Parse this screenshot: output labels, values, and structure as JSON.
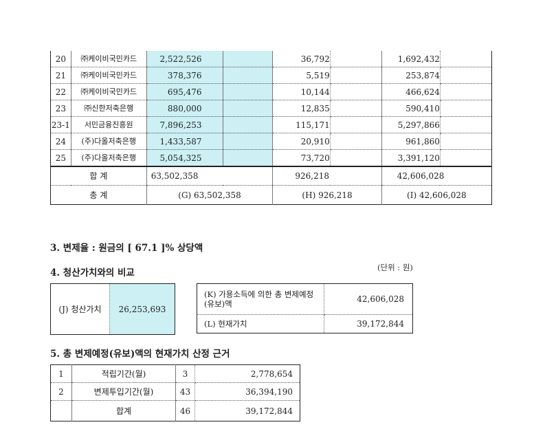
{
  "rows": [
    {
      "no": "20",
      "name": "㈜케이비국민카드",
      "principal": "2,522,526",
      "monthly": "36,792",
      "total": "1,692,432"
    },
    {
      "no": "21",
      "name": "㈜케이비국민카드",
      "principal": "378,376",
      "monthly": "5,519",
      "total": "253,874"
    },
    {
      "no": "22",
      "name": "㈜케이비국민카드",
      "principal": "695,476",
      "monthly": "10,144",
      "total": "466,624"
    },
    {
      "no": "23",
      "name": "㈜신한저축은행",
      "principal": "880,000",
      "monthly": "12,835",
      "total": "590,410"
    },
    {
      "no": "23-1",
      "name": "서민금융진흥원",
      "principal": "7,896,253",
      "monthly": "115,171",
      "total": "5,297,866"
    },
    {
      "no": "24",
      "name": "(주)다올저축은행",
      "principal": "1,433,587",
      "monthly": "20,910",
      "total": "961,860"
    },
    {
      "no": "25",
      "name": "(주)다올저축은행",
      "principal": "5,054,325",
      "monthly": "73,720",
      "total": "3,391,120"
    }
  ],
  "sum_row": {
    "label": "합 계",
    "principal": "63,502,358",
    "monthly": "926,218",
    "total": "42,606,028"
  },
  "total_row": {
    "label": "총 계",
    "g": "(G) 63,502,358",
    "h": "(H) 926,218",
    "i": "(I) 42,606,028"
  },
  "section3": "3. 변제율 : 원금의 [ 67.1 ]% 상당액",
  "section4": "4. 청산가치와의 비교",
  "unit": "(단위 : 원)",
  "liquidation": {
    "label": "(J) 청산가치",
    "value": "26,253,693"
  },
  "comparison": {
    "k_label": "(K) 가용소득에 의한 총 변제예정(유보)액",
    "k_value": "42,606,028",
    "l_label": "(L) 현재가치",
    "l_value": "39,172,844"
  },
  "section5": "5. 총 변제예정(유보)액의 현재가치 산정 근거",
  "basis": [
    {
      "no": "1",
      "item": "적립기간(월)",
      "months": "3",
      "amount": "2,778,654"
    },
    {
      "no": "2",
      "item": "변제투입기간(월)",
      "months": "43",
      "amount": "36,394,190"
    },
    {
      "no": "",
      "item": "합계",
      "months": "46",
      "amount": "39,172,844"
    }
  ]
}
